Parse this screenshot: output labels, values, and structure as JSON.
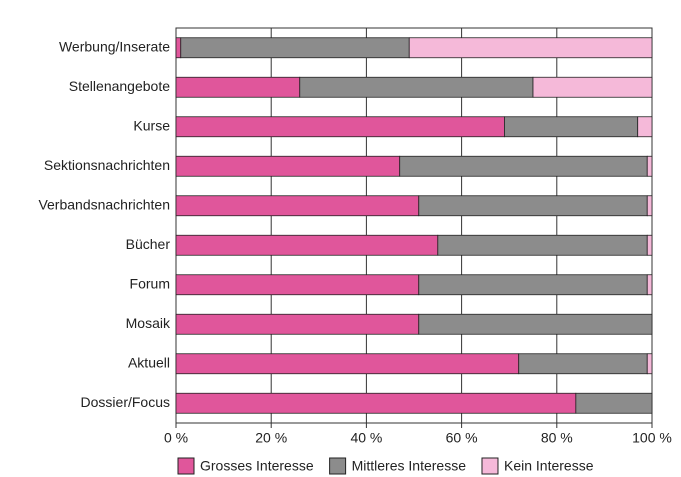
{
  "chart_data": {
    "type": "stacked_barh",
    "categories": [
      "Werbung/Inserate",
      "Stellenangebote",
      "Kurse",
      "Sektionsnachrichten",
      "Verbandsnachrichten",
      "Bücher",
      "Forum",
      "Mosaik",
      "Aktuell",
      "Dossier/Focus"
    ],
    "series": [
      {
        "name": "Grosses Interesse",
        "color": "#e0569b",
        "values": [
          1,
          26,
          69,
          47,
          51,
          55,
          51,
          51,
          72,
          84
        ]
      },
      {
        "name": "Mittleres Interesse",
        "color": "#8c8c8c",
        "values": [
          48,
          49,
          28,
          52,
          48,
          44,
          48,
          49,
          27,
          16
        ]
      },
      {
        "name": "Kein Interesse",
        "color": "#f5b9d9",
        "values": [
          51,
          25,
          3,
          1,
          1,
          1,
          1,
          0,
          1,
          0
        ]
      }
    ],
    "xlim": [
      0,
      100
    ],
    "xticks": [
      {
        "value": 0,
        "label": "0 %"
      },
      {
        "value": 20,
        "label": "20 %"
      },
      {
        "value": 40,
        "label": "40 %"
      },
      {
        "value": 60,
        "label": "60 %"
      },
      {
        "value": 80,
        "label": "80 %"
      },
      {
        "value": 100,
        "label": "100 %"
      }
    ],
    "grid": true,
    "legend": "bottom"
  }
}
